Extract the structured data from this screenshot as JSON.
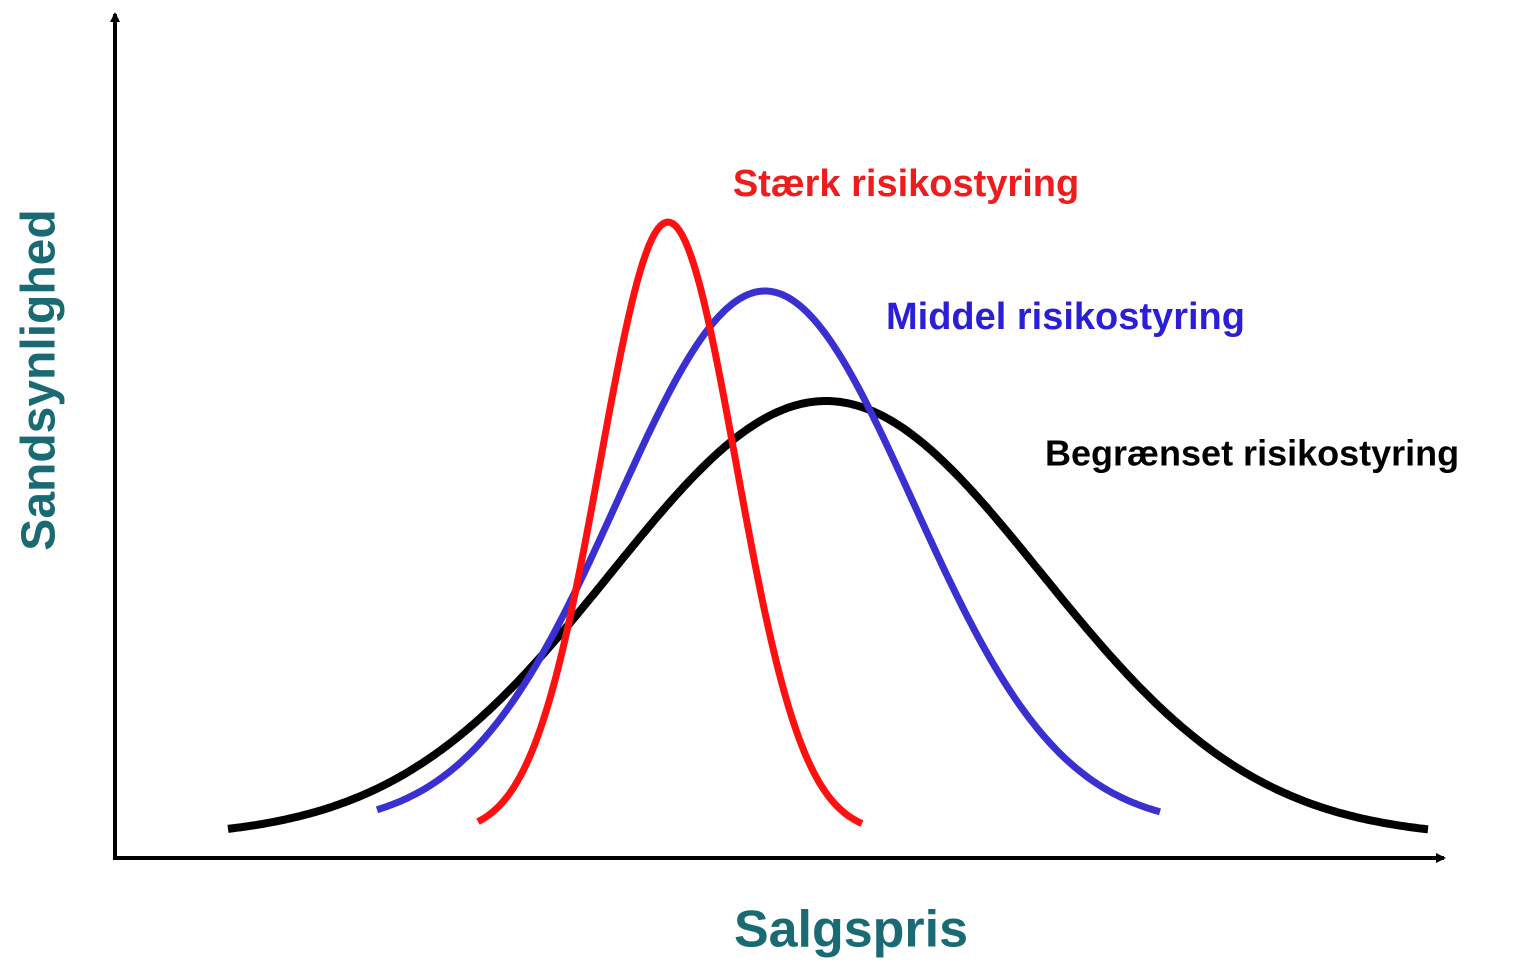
{
  "diagram": {
    "y_axis_label": "Sandsynlighed",
    "x_axis_label": "Salgspris",
    "curves": [
      {
        "label": "Stærk risikostyring"
      },
      {
        "label": "Middel risikostyring"
      },
      {
        "label": "Begrænset risikostyring"
      }
    ]
  }
}
